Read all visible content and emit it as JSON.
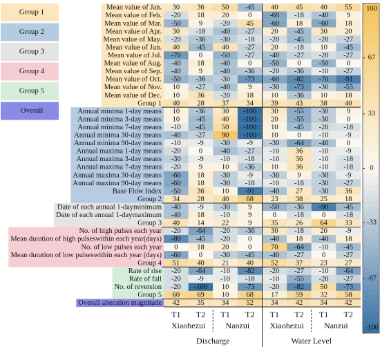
{
  "chart_data": {
    "type": "heatmap",
    "colorbar": {
      "lim": [
        -100,
        100
      ],
      "ticks": [
        100,
        67,
        33,
        0,
        -33,
        -67,
        -100
      ],
      "high_color": "#f5c25a",
      "mid_color": "#fbf8f1",
      "low_color": "#3670a3"
    },
    "columns": {
      "periods": [
        "T1",
        "T2",
        "T1",
        "T2",
        "T1",
        "T2",
        "T1",
        "T2"
      ],
      "stations": [
        "Xiaohezui",
        "Nanzui",
        "Xiaohezui",
        "Nanzui"
      ],
      "variables": [
        "Discharge",
        "Water Level"
      ]
    },
    "groups": [
      {
        "name": "Group 1",
        "color": "#fbe6bd",
        "rows": [
          {
            "label": "Mean value of Jan.",
            "values": [
              30,
              36,
              50,
              -45,
              40,
              45,
              40,
              55
            ]
          },
          {
            "label": "Mean value of Feb.",
            "values": [
              -20,
              18,
              20,
              0,
              -60,
              -18,
              -40,
              9
            ]
          },
          {
            "label": "Mean value of Mar.",
            "values": [
              -50,
              9,
              -20,
              45,
              -60,
              18,
              -60,
              18
            ]
          },
          {
            "label": "Mean value of Apr.",
            "values": [
              30,
              -18,
              -40,
              -27,
              20,
              -45,
              30,
              20
            ]
          },
          {
            "label": "Mean value of May.",
            "values": [
              -20,
              -36,
              -30,
              -18,
              -20,
              -45,
              -20,
              -27
            ]
          },
          {
            "label": "Mean value of Jun.",
            "values": [
              40,
              -45,
              40,
              -27,
              20,
              -18,
              10,
              -45
            ]
          },
          {
            "label": "Mean value of Jul.",
            "values": [
              -70,
              0,
              -50,
              -27,
              -40,
              -27,
              -20,
              -27
            ]
          },
          {
            "label": "Mean value of Aug.",
            "values": [
              -40,
              18,
              -40,
              0,
              -50,
              0,
              -50,
              0
            ]
          },
          {
            "label": "Mean value of Sep.",
            "values": [
              -40,
              9,
              -40,
              -36,
              -20,
              -36,
              -10,
              -27
            ]
          },
          {
            "label": "Mean value of Oct.",
            "values": [
              -50,
              -36,
              -30,
              -73,
              -60,
              -82,
              -70,
              -91
            ]
          },
          {
            "label": "Mean value of Nov.",
            "values": [
              10,
              -27,
              -40,
              9,
              -30,
              -73,
              -30,
              -55
            ]
          },
          {
            "label": "Mean value of Dec.",
            "values": [
              10,
              36,
              -20,
              18,
              10,
              -36,
              10,
              18
            ]
          }
        ],
        "summary": [
          40,
          28,
          37,
          34,
          39,
          43,
          38,
          40
        ]
      },
      {
        "name": "Group 2",
        "color": "#b6cbe2",
        "rows": [
          {
            "label": "Annual minima 1-day means",
            "values": [
              10,
              -36,
              30,
              -100,
              30,
              -55,
              -30,
              9
            ]
          },
          {
            "label": "Annual minima 3-day means",
            "values": [
              10,
              -45,
              40,
              -100,
              20,
              -55,
              -30,
              0
            ]
          },
          {
            "label": "Annual minima 7-day means",
            "values": [
              -10,
              -45,
              50,
              -100,
              10,
              -45,
              -20,
              -18
            ]
          },
          {
            "label": "Annual minima 30-day means",
            "values": [
              -40,
              -27,
              90,
              -100,
              10,
              0,
              -10,
              -9
            ]
          },
          {
            "label": "Annual minima 90-day means",
            "values": [
              -10,
              -9,
              -30,
              -9,
              -30,
              -64,
              -40,
              0
            ]
          },
          {
            "label": "Annual maxima 1-day means",
            "values": [
              -20,
              0,
              -40,
              -27,
              -10,
              36,
              -10,
              -9
            ]
          },
          {
            "label": "Annual maxima 3-day means",
            "values": [
              -30,
              -9,
              -10,
              -18,
              -10,
              36,
              -10,
              -18
            ]
          },
          {
            "label": "Annual maxima 7-day means",
            "values": [
              -20,
              9,
              10,
              -36,
              10,
              36,
              -10,
              -18
            ]
          },
          {
            "label": "Annual maxima 30-day means",
            "values": [
              -60,
              18,
              -30,
              -9,
              -30,
              9,
              -30,
              -9
            ]
          },
          {
            "label": "Annual maxima 90-day means",
            "values": [
              -60,
              18,
              -30,
              -18,
              -10,
              -18,
              -30,
              -27
            ]
          },
          {
            "label": "Base Flow Index",
            "values": [
              -50,
              36,
              10,
              -91,
              -40,
              27,
              -30,
              36
            ]
          }
        ],
        "summary": [
          34,
          28,
          40,
          68,
          23,
          38,
          25,
          18
        ]
      },
      {
        "name": "Group 3",
        "color": "#e4e4e4",
        "rows": [
          {
            "label": "Date of each annual 1-dayminimum",
            "values": [
              -40,
              -9,
              -30,
              9,
              -50,
              -36,
              -90,
              -45
            ]
          },
          {
            "label": "Date of each annual 1-daymaximum",
            "values": [
              -40,
              18,
              -10,
              9,
              0,
              -18,
              0,
              -18
            ]
          }
        ],
        "summary": [
          40,
          14,
          22,
          9,
          35,
          26,
          64,
          33
        ]
      },
      {
        "name": "Group 4",
        "color": "#f6cdd2",
        "rows": [
          {
            "label": "No. of high pulses each year",
            "values": [
              -20,
              -64,
              -20,
              -36,
              30,
              -18,
              20,
              -9
            ]
          },
          {
            "label": "Mean duration of high pulseswithin each year(days)",
            "values": [
              -80,
              -45,
              -20,
              0,
              -40,
              18,
              -40,
              18
            ]
          },
          {
            "label": "No. of low pulses each year",
            "values": [
              0,
              18,
              20,
              0,
              70,
              -64,
              -10,
              -45
            ]
          },
          {
            "label": "Mean duration of low pulseswithin each year (days)",
            "values": [
              -60,
              0,
              -30,
              -45,
              -40,
              -27,
              0,
              -27
            ]
          }
        ],
        "summary": [
          51,
          40,
          21,
          40,
          52,
          37,
          23,
          27
        ]
      },
      {
        "name": "Group 5",
        "color": "#d4eddb",
        "rows": [
          {
            "label": "Rate of rise",
            "values": [
              -20,
              -64,
              -10,
              -82,
              -20,
              -27,
              -10,
              -64
            ]
          },
          {
            "label": "Rate of fall",
            "values": [
              -20,
              -9,
              -10,
              -18,
              -10,
              -55,
              -20,
              -27
            ]
          },
          {
            "label": "No. of reversion",
            "values": [
              -20,
              -100,
              10,
              -73,
              -20,
              -82,
              50,
              -73
            ]
          }
        ],
        "summary": [
          60,
          69,
          10,
          68,
          17,
          59,
          32,
          58
        ]
      }
    ],
    "overall": {
      "name": "Overall",
      "label": "Overall alteration magnitude",
      "color": "#8b8be6",
      "values": [
        42,
        35,
        34,
        52,
        34,
        42,
        34,
        42
      ]
    }
  }
}
